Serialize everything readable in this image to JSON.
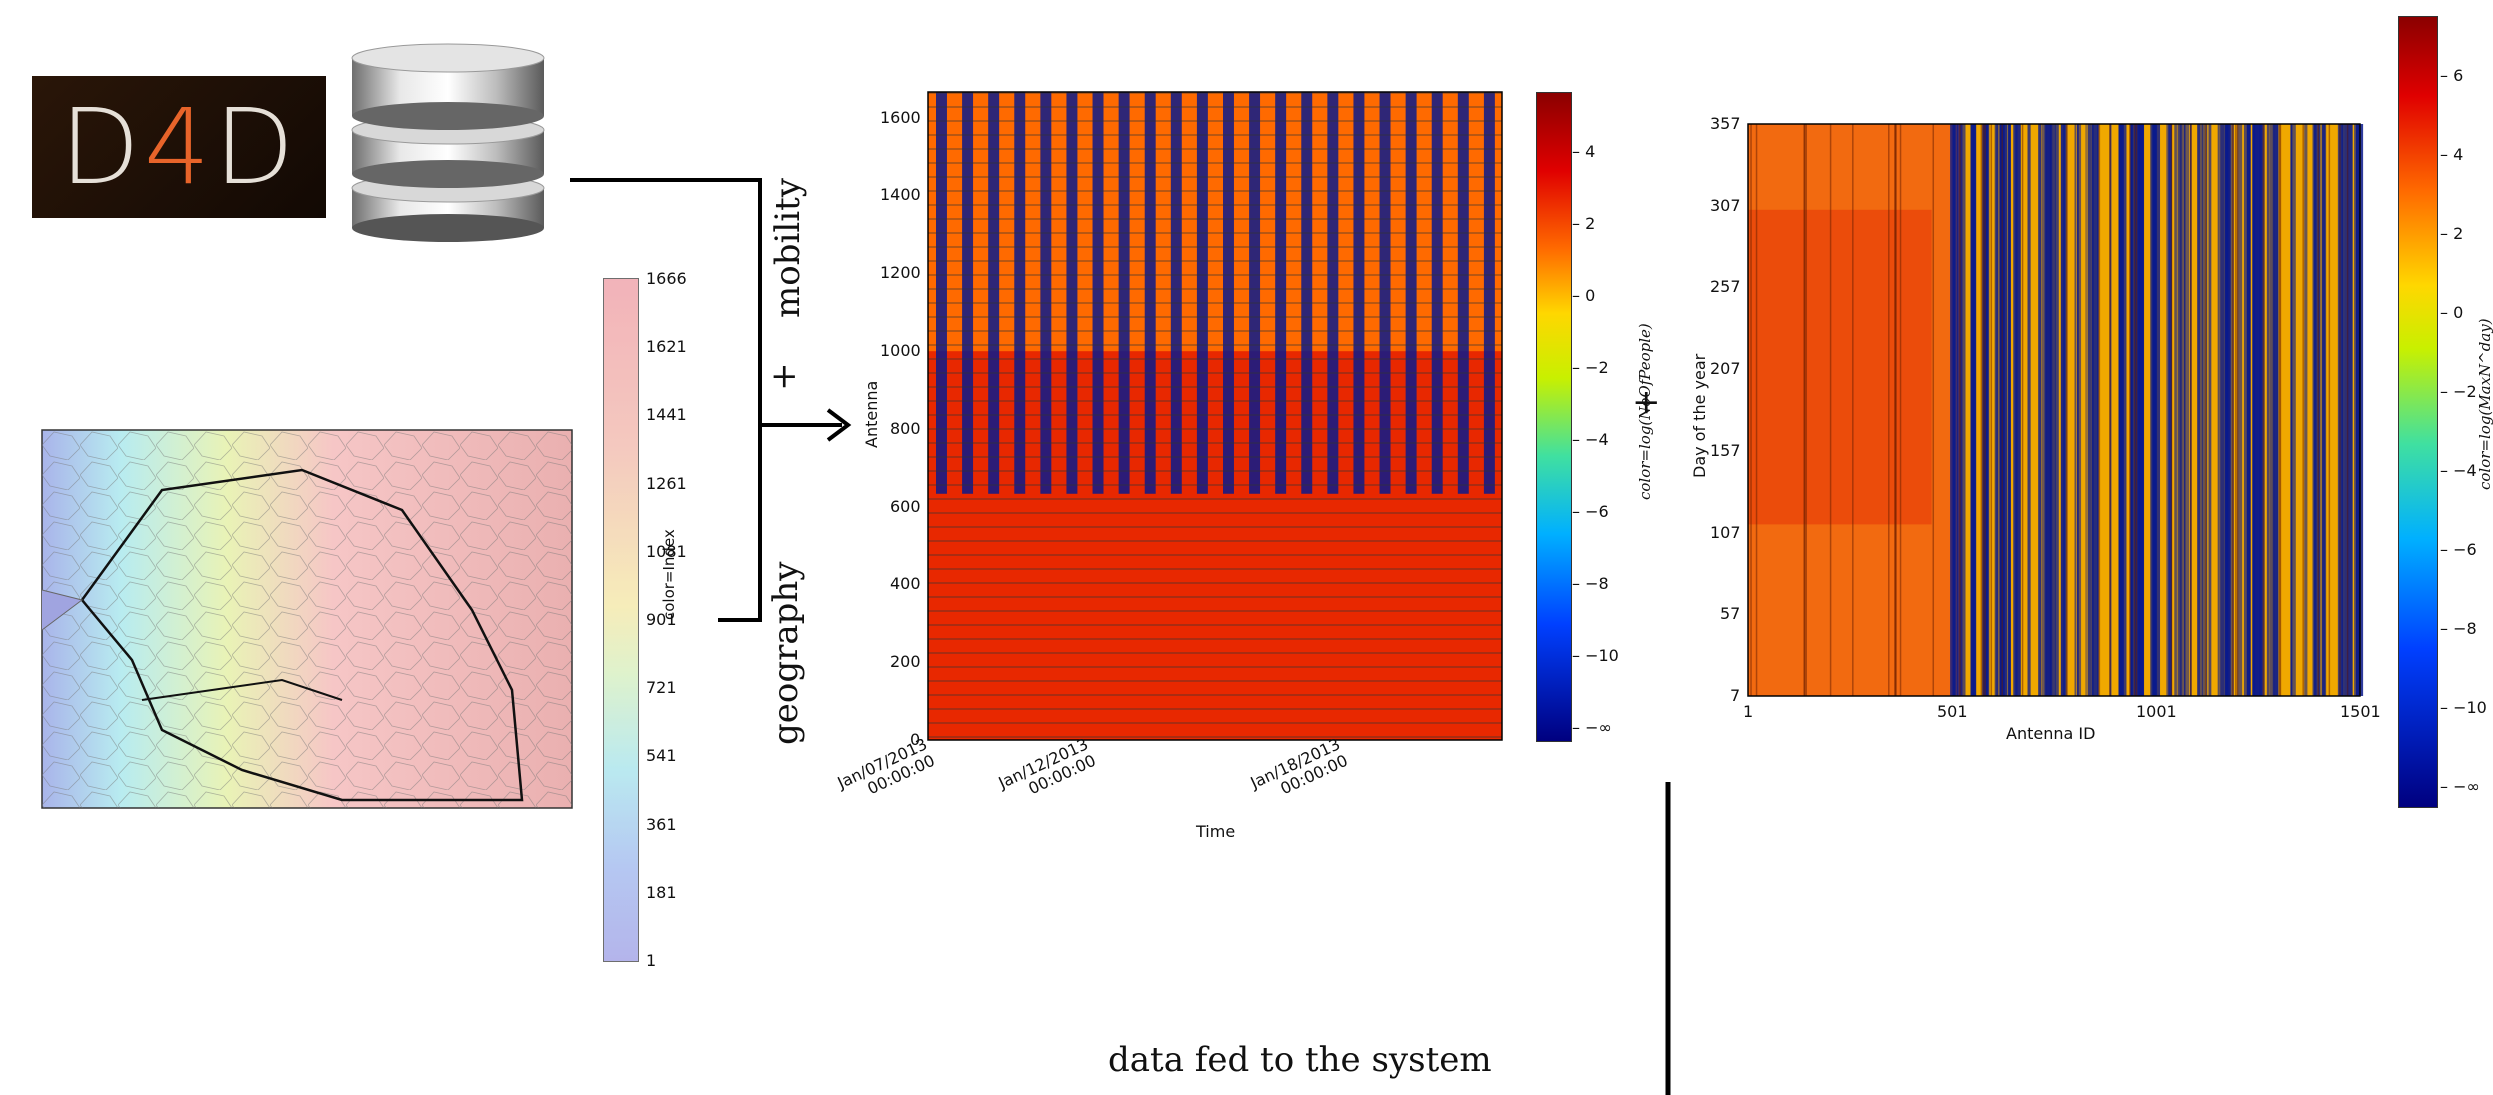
{
  "logo": {
    "text_left": "D",
    "text_mid": "4",
    "text_right": "D",
    "bg": "#1a0e06",
    "accent": "#e8642a"
  },
  "database": {
    "icon": "database-icon"
  },
  "map": {
    "colorbar_label": "color=Index",
    "colorbar_ticks": [
      "1666",
      "1621",
      "1441",
      "1261",
      "1081",
      "901",
      "721",
      "541",
      "361",
      "181",
      "1"
    ]
  },
  "labels": {
    "mobility": "mobility",
    "plus_vertical": "+",
    "geography": "geography",
    "plus_between": "+",
    "caption": "data fed to the system"
  },
  "chart_data": [
    {
      "type": "heatmap",
      "title": "",
      "xlabel": "Time",
      "ylabel": "Antenna",
      "xticks": [
        "Jan/07/2013\n00:00:00",
        "Jan/12/2013\n00:00:00",
        "Jan/18/2013\n00:00:00"
      ],
      "yticks": [
        "0",
        "200",
        "400",
        "600",
        "800",
        "1000",
        "1200",
        "1400",
        "1600"
      ],
      "ylim": [
        0,
        1666
      ],
      "colorbar_label": "color=log(NoOfPeople)",
      "colorbar_ticks": [
        "4",
        "2",
        "0",
        "−2",
        "−4",
        "−6",
        "−8",
        "−10",
        "−∞"
      ],
      "colormap": "jet"
    },
    {
      "type": "heatmap",
      "title": "",
      "xlabel": "Antenna ID",
      "ylabel": "Day of the year",
      "xticks": [
        "1",
        "501",
        "1001",
        "1501"
      ],
      "yticks": [
        "357",
        "307",
        "257",
        "207",
        "157",
        "107",
        "57",
        "7"
      ],
      "xlim": [
        1,
        1501
      ],
      "ylim": [
        7,
        357
      ],
      "colorbar_label": "color=log(MaxN^day)",
      "colorbar_ticks": [
        "6",
        "4",
        "2",
        "0",
        "−2",
        "−4",
        "−6",
        "−8",
        "−10",
        "−∞"
      ],
      "colormap": "jet"
    }
  ]
}
